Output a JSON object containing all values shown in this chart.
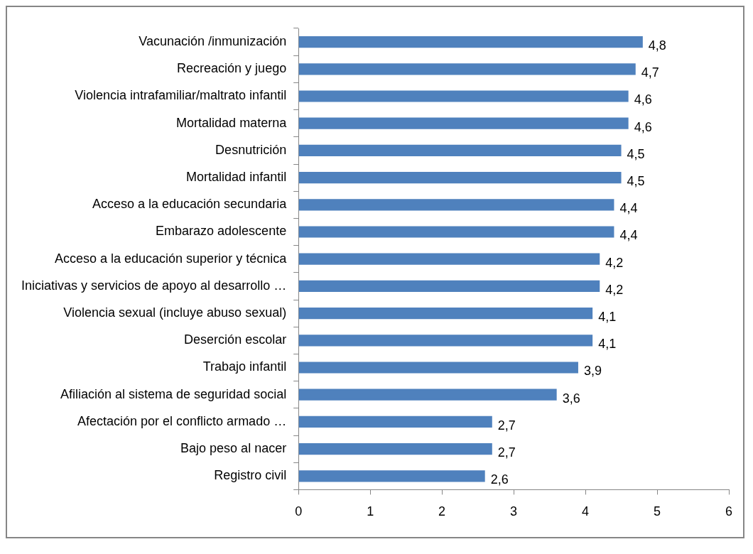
{
  "chart_data": {
    "type": "bar",
    "orientation": "horizontal",
    "categories": [
      "Vacunación /inmunización",
      "Recreación y juego",
      "Violencia intrafamiliar/maltrato infantil",
      "Mortalidad materna",
      "Desnutrición",
      "Mortalidad infantil",
      "Acceso a la educación secundaria",
      "Embarazo adolescente",
      "Acceso a la educación superior y técnica",
      "Iniciativas y servicios de apoyo al desarrollo …",
      "Violencia sexual (incluye abuso sexual)",
      "Deserción escolar",
      "Trabajo infantil",
      "Afiliación al sistema de seguridad social",
      "Afectación por el conflicto armado …",
      "Bajo peso al nacer",
      "Registro civil"
    ],
    "values": [
      4.8,
      4.7,
      4.6,
      4.6,
      4.5,
      4.5,
      4.4,
      4.4,
      4.2,
      4.2,
      4.1,
      4.1,
      3.9,
      3.6,
      2.7,
      2.7,
      2.6
    ],
    "value_labels": [
      "4,8",
      "4,7",
      "4,6",
      "4,6",
      "4,5",
      "4,5",
      "4,4",
      "4,4",
      "4,2",
      "4,2",
      "4,1",
      "4,1",
      "3,9",
      "3,6",
      "2,7",
      "2,7",
      "2,6"
    ],
    "color": "#4f81bd",
    "xlim": [
      0,
      6
    ],
    "xticks": [
      0,
      1,
      2,
      3,
      4,
      5,
      6
    ],
    "grid": false,
    "legend": false
  }
}
